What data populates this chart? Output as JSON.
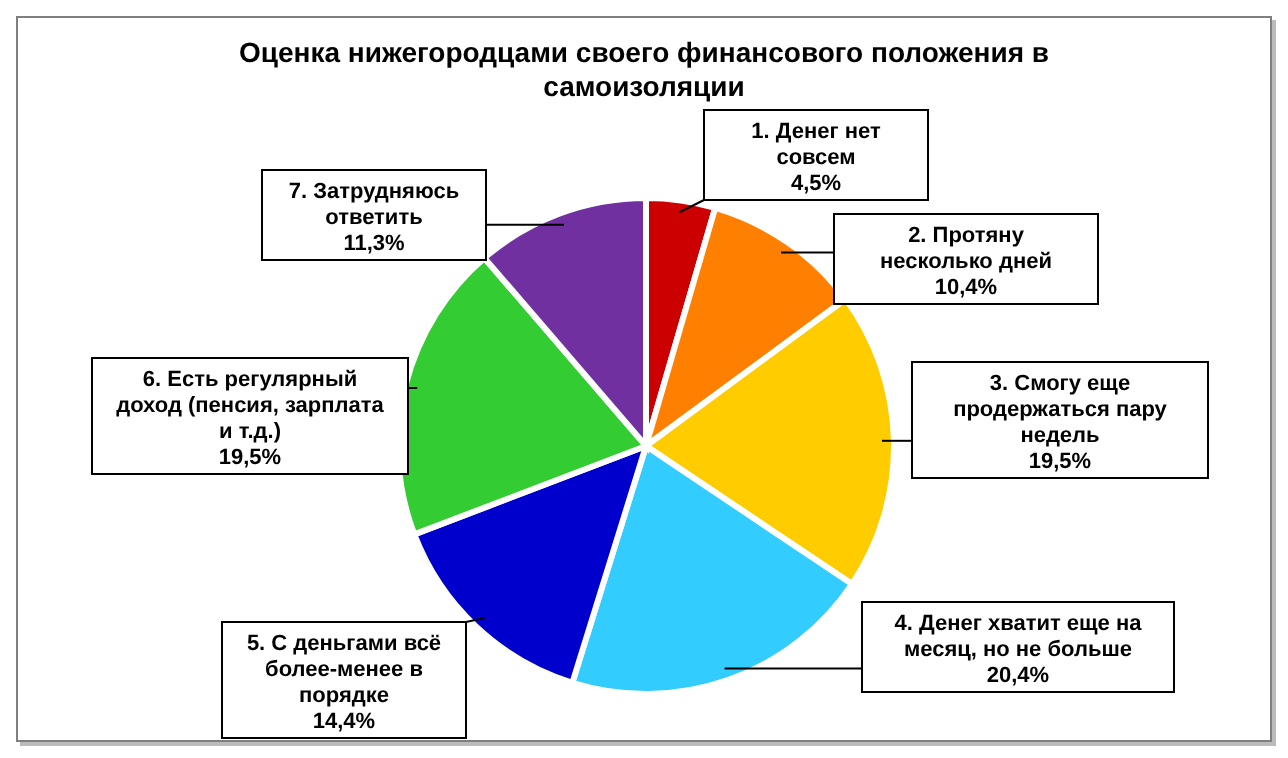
{
  "chart_data": {
    "type": "pie",
    "title": "Оценка нижегородцами своего финансового положения в самоизоляции",
    "categories": [
      "1. Денег нет совсем",
      "2. Протяну несколько дней",
      "3. Смогу еще продержаться пару недель",
      "4. Денег хватит еще на месяц, но не больше",
      "5. С деньгами всё более-менее в порядке",
      "6. Есть регулярный доход (пенсия, зарплата и т.д.)",
      "7. Затрудняюсь ответить"
    ],
    "values": [
      4.5,
      10.4,
      19.5,
      20.4,
      14.4,
      19.5,
      11.3
    ],
    "value_labels": [
      "4,5%",
      "10,4%",
      "19,5%",
      "20,4%",
      "14,4%",
      "19,5%",
      "11,3%"
    ],
    "colors": [
      "#cc0000",
      "#ff8000",
      "#ffcc00",
      "#33ccff",
      "#0000cc",
      "#33cc33",
      "#7030a0"
    ]
  }
}
